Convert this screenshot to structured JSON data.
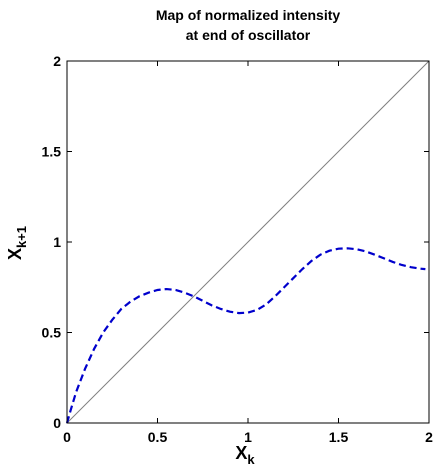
{
  "chart_data": {
    "type": "line",
    "title": [
      "Map of normalized intensity",
      "at end of oscillator"
    ],
    "xlabel": {
      "main": "X",
      "sub": "k"
    },
    "ylabel": {
      "main": "X",
      "sub": "k+1"
    },
    "xlim": [
      0,
      2
    ],
    "ylim": [
      0,
      2
    ],
    "xticks": [
      0,
      0.5,
      1,
      1.5,
      2
    ],
    "yticks": [
      0,
      0.5,
      1,
      1.5,
      2
    ],
    "xtick_labels": [
      "0",
      "0.5",
      "1",
      "1.5",
      "2"
    ],
    "ytick_labels": [
      "0",
      "0.5",
      "1",
      "1.5",
      "2"
    ],
    "grid": false,
    "series": [
      {
        "style": "solid",
        "color": "#808080",
        "x": [
          0,
          2
        ],
        "y": [
          0,
          2
        ]
      },
      {
        "style": "dashed",
        "color": "#0000cc",
        "x": [
          0,
          0.02,
          0.05,
          0.1,
          0.15,
          0.2,
          0.25,
          0.3,
          0.35,
          0.4,
          0.45,
          0.5,
          0.55,
          0.6,
          0.65,
          0.7,
          0.75,
          0.8,
          0.85,
          0.9,
          0.95,
          1.0,
          1.05,
          1.1,
          1.15,
          1.2,
          1.25,
          1.3,
          1.35,
          1.4,
          1.45,
          1.5,
          1.55,
          1.6,
          1.65,
          1.7,
          1.75,
          1.8,
          1.85,
          1.9,
          1.95,
          1.98
        ],
        "y": [
          0,
          0.07,
          0.17,
          0.3,
          0.41,
          0.5,
          0.57,
          0.63,
          0.67,
          0.7,
          0.72,
          0.735,
          0.74,
          0.735,
          0.72,
          0.7,
          0.675,
          0.65,
          0.63,
          0.615,
          0.607,
          0.61,
          0.625,
          0.655,
          0.7,
          0.75,
          0.8,
          0.85,
          0.895,
          0.93,
          0.952,
          0.963,
          0.965,
          0.96,
          0.948,
          0.93,
          0.91,
          0.89,
          0.873,
          0.861,
          0.853,
          0.85
        ]
      }
    ]
  }
}
